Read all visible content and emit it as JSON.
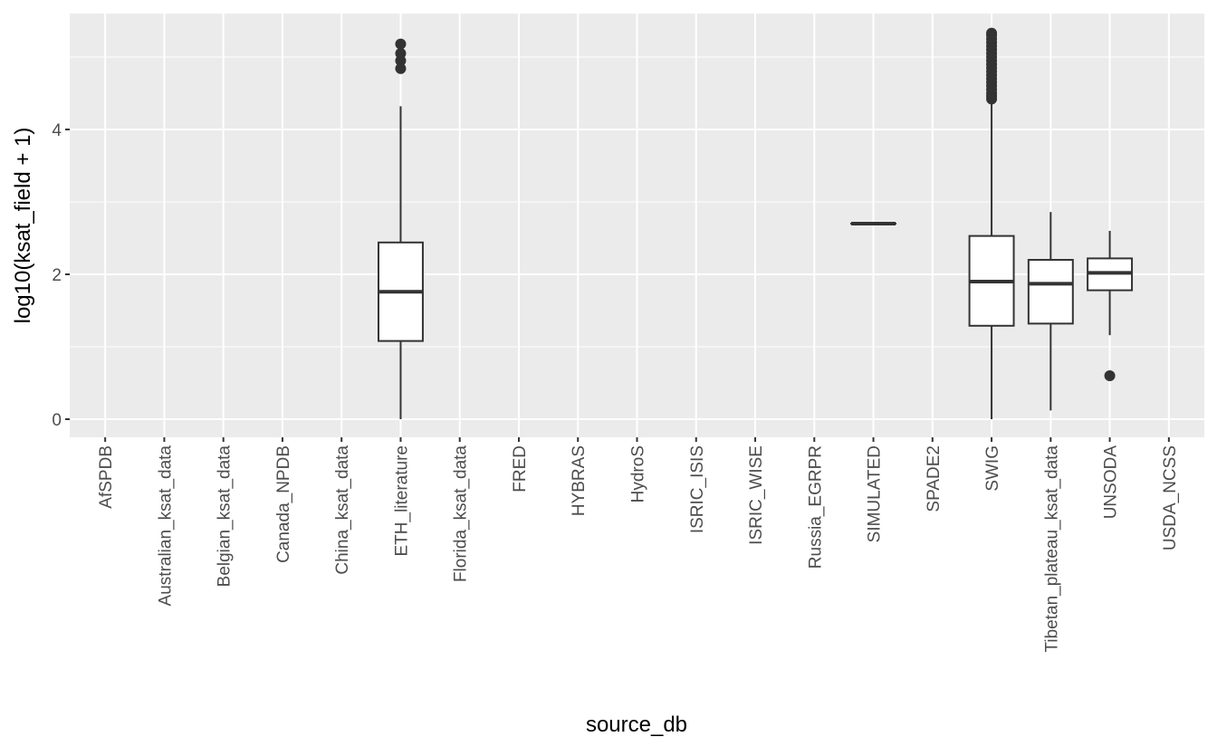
{
  "chart_data": {
    "type": "box",
    "title": "",
    "xlabel": "source_db",
    "ylabel": "log10(ksat_field + 1)",
    "ylim": [
      -0.25,
      5.6
    ],
    "yticks": [
      0,
      2,
      4
    ],
    "grid": true,
    "categories": [
      "AfSPDB",
      "Australian_ksat_data",
      "Belgian_ksat_data",
      "Canada_NPDB",
      "China_ksat_data",
      "ETH_literature",
      "Florida_ksat_data",
      "FRED",
      "HYBRAS",
      "HydroS",
      "ISRIC_ISIS",
      "ISRIC_WISE",
      "Russia_EGRPR",
      "SIMULATED",
      "SPADE2",
      "SWIG",
      "Tibetan_plateau_ksat_data",
      "UNSODA",
      "USDA_NCSS"
    ],
    "boxes": [
      {
        "category": "ETH_literature",
        "lower_whisker": 0,
        "q1": 1.08,
        "median": 1.76,
        "q3": 2.44,
        "upper_whisker": 4.32,
        "outliers": [
          4.84,
          4.95,
          5.05,
          5.18
        ]
      },
      {
        "category": "SIMULATED",
        "lower_whisker": 2.7,
        "q1": 2.7,
        "median": 2.7,
        "q3": 2.7,
        "upper_whisker": 2.7,
        "outliers": []
      },
      {
        "category": "SWIG",
        "lower_whisker": 0,
        "q1": 1.29,
        "median": 1.9,
        "q3": 2.53,
        "upper_whisker": 4.4,
        "outliers": [
          4.42,
          4.46,
          4.5,
          4.55,
          4.6,
          4.65,
          4.7,
          4.75,
          4.8,
          4.85,
          4.9,
          4.95,
          5.0,
          5.05,
          5.1,
          5.15,
          5.2,
          5.25,
          5.3,
          5.33
        ]
      },
      {
        "category": "Tibetan_plateau_ksat_data",
        "lower_whisker": 0.12,
        "q1": 1.32,
        "median": 1.87,
        "q3": 2.2,
        "upper_whisker": 2.86,
        "outliers": []
      },
      {
        "category": "UNSODA",
        "lower_whisker": 1.16,
        "q1": 1.78,
        "median": 2.02,
        "q3": 2.22,
        "upper_whisker": 2.6,
        "outliers": [
          0.6
        ]
      }
    ]
  }
}
